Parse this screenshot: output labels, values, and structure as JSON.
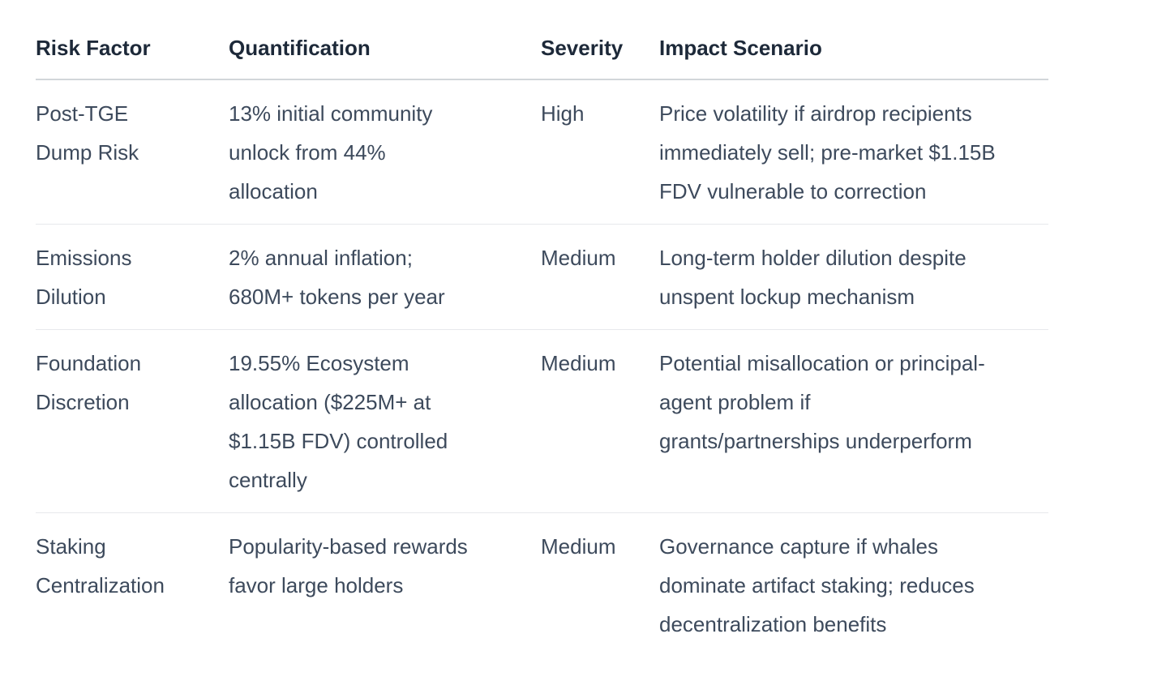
{
  "page": {
    "background": "#ffffff"
  },
  "colors": {
    "header_text": "#1d2939",
    "body_text": "#3d4a5c",
    "header_border": "#d2d6da",
    "row_border": "#e7e9ec"
  },
  "table": {
    "columns": [
      {
        "label": "Risk Factor"
      },
      {
        "label": "Quantification"
      },
      {
        "label": "Severity"
      },
      {
        "label": "Impact Scenario"
      }
    ],
    "rows": [
      {
        "risk_factor": "Post-TGE\nDump Risk",
        "quantification": "13% initial community\nunlock from 44%\nallocation",
        "severity": "High",
        "impact_scenario": "Price volatility if airdrop recipients\nimmediately sell; pre-market $1.15B\nFDV vulnerable to correction"
      },
      {
        "risk_factor": "Emissions\nDilution",
        "quantification": "2% annual inflation;\n680M+ tokens per year",
        "severity": "Medium",
        "impact_scenario": "Long-term holder dilution despite\nunspent lockup mechanism"
      },
      {
        "risk_factor": "Foundation\nDiscretion",
        "quantification": "19.55% Ecosystem\nallocation ($225M+ at\n$1.15B FDV) controlled\ncentrally",
        "severity": "Medium",
        "impact_scenario": "Potential misallocation or principal-\nagent problem if\ngrants/partnerships underperform"
      },
      {
        "risk_factor": "Staking\nCentralization",
        "quantification": "Popularity-based rewards\nfavor large holders",
        "severity": "Medium",
        "impact_scenario": "Governance capture if whales\ndominate artifact staking; reduces\ndecentralization benefits"
      }
    ]
  }
}
